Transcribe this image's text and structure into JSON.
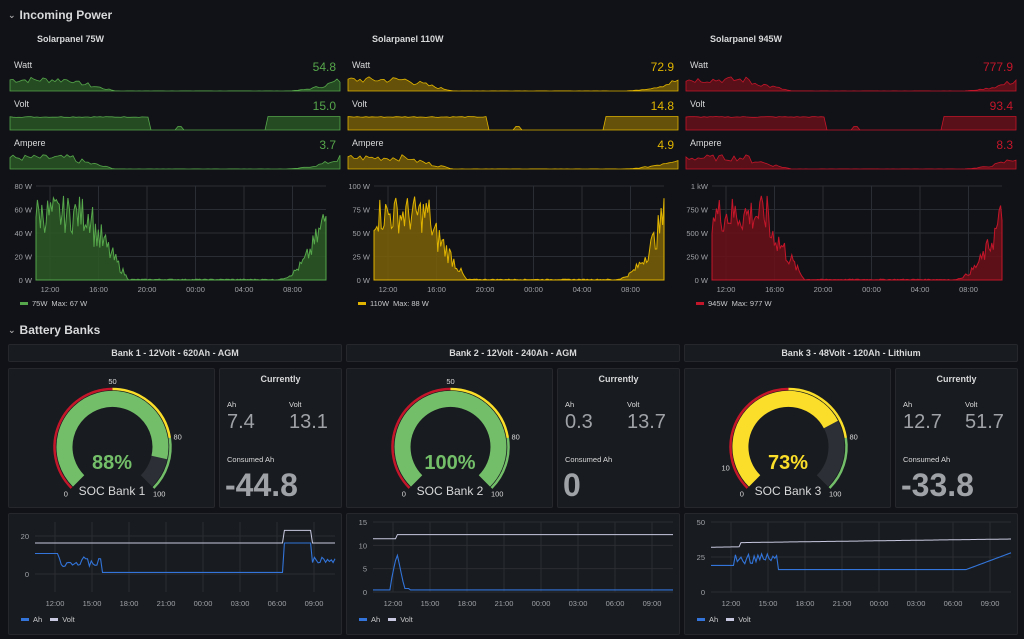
{
  "rows": {
    "incoming": "Incoming Power",
    "battery": "Battery Banks"
  },
  "solar": [
    {
      "title": "Solarpanel 75W",
      "color": "#56a64b",
      "fill": "#2b5a26",
      "watt": "54.8",
      "volt": "15.0",
      "ampere": "3.7",
      "y_ticks": [
        "80 W",
        "60 W",
        "40 W",
        "20 W",
        "0 W"
      ],
      "legend": "75W",
      "legend_max": "Max: 67 W"
    },
    {
      "title": "Solarpanel 110W",
      "color": "#e0b400",
      "fill": "#7a6208",
      "watt": "72.9",
      "volt": "14.8",
      "ampere": "4.9",
      "y_ticks": [
        "100 W",
        "75 W",
        "50 W",
        "25 W",
        "0 W"
      ],
      "legend": "110W",
      "legend_max": "Max: 88 W"
    },
    {
      "title": "Solarpanel 945W",
      "color": "#c4162a",
      "fill": "#6b1019",
      "watt": "777.9",
      "volt": "93.4",
      "ampere": "8.3",
      "y_ticks": [
        "1 kW",
        "750 W",
        "500 W",
        "250 W",
        "0 W"
      ],
      "legend": "945W",
      "legend_max": "Max: 977 W"
    }
  ],
  "spark_labels": {
    "watt": "Watt",
    "volt": "Volt",
    "ampere": "Ampere"
  },
  "solar_x_ticks": [
    "12:00",
    "16:00",
    "20:00",
    "00:00",
    "04:00",
    "08:00"
  ],
  "banks": [
    {
      "header": "Bank 1 - 12Volt - 620Ah - AGM",
      "soc": "88%",
      "soc_value": 88,
      "soc_color": "#73bf69",
      "gauge_name": "SOC Bank 1",
      "gauge_ticks": [
        "0",
        "50",
        "80",
        "100"
      ],
      "ah": "7.4",
      "volt": "13.1",
      "consumed": "-44.8",
      "y_ticks": [
        "20",
        "0"
      ]
    },
    {
      "header": "Bank 2 - 12Volt - 240Ah - AGM",
      "soc": "100%",
      "soc_value": 100,
      "soc_color": "#73bf69",
      "gauge_name": "SOC Bank 2",
      "gauge_ticks": [
        "0",
        "50",
        "80",
        "100"
      ],
      "ah": "0.3",
      "volt": "13.7",
      "consumed": "0",
      "y_ticks": [
        "15",
        "10",
        "5",
        "0"
      ]
    },
    {
      "header": "Bank 3 - 48Volt - 120Ah - Lithium",
      "soc": "73%",
      "soc_value": 73,
      "soc_color": "#fade2a",
      "gauge_name": "SOC Bank 3",
      "gauge_ticks": [
        "0",
        "10",
        "80",
        "100"
      ],
      "ah": "12.7",
      "volt": "51.7",
      "consumed": "-33.8",
      "y_ticks": [
        "50",
        "25",
        "0"
      ]
    }
  ],
  "bank_labels": {
    "currently": "Currently",
    "ah": "Ah",
    "volt": "Volt",
    "consumed": "Consumed Ah"
  },
  "bank_x_ticks": [
    "12:00",
    "15:00",
    "18:00",
    "21:00",
    "00:00",
    "03:00",
    "06:00",
    "09:00"
  ],
  "bank_legend": {
    "ah": "Ah",
    "volt": "Volt",
    "ah_color": "#3274d9",
    "volt_color": "#c8c9e0"
  }
}
